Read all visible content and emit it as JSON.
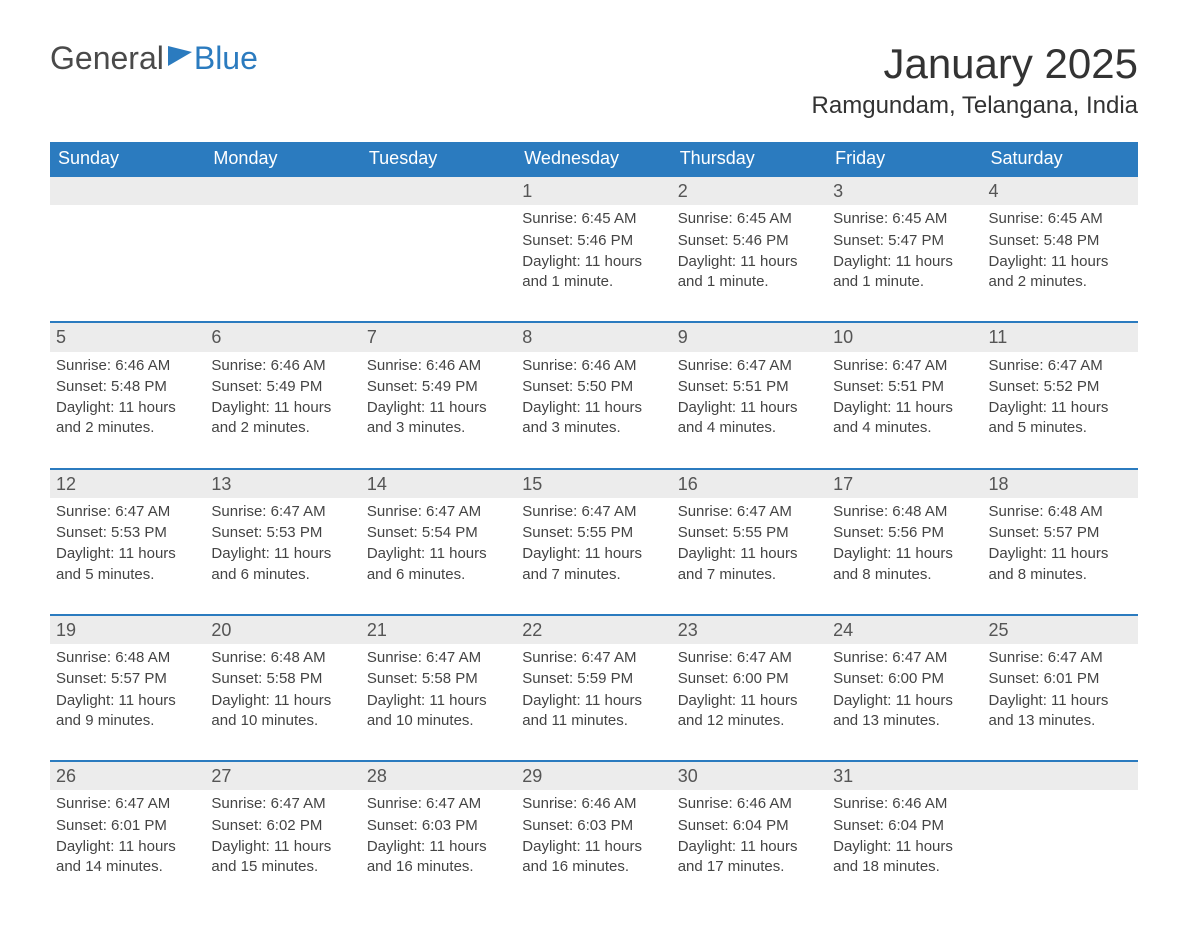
{
  "logo": {
    "part1": "General",
    "part2": "Blue"
  },
  "title": "January 2025",
  "location": "Ramgundam, Telangana, India",
  "colors": {
    "header_bg": "#2b7bbf",
    "header_text": "#ffffff",
    "daynum_bg": "#ececec",
    "body_text": "#444444",
    "row_rule": "#2b7bbf",
    "page_bg": "#ffffff"
  },
  "typography": {
    "title_fontsize": 42,
    "location_fontsize": 24,
    "header_fontsize": 18,
    "cell_fontsize": 15
  },
  "layout": {
    "start_weekday": "Sunday",
    "first_day_column_index": 3
  },
  "weekdays": [
    "Sunday",
    "Monday",
    "Tuesday",
    "Wednesday",
    "Thursday",
    "Friday",
    "Saturday"
  ],
  "labels": {
    "sunrise_prefix": "Sunrise: ",
    "sunset_prefix": "Sunset: ",
    "daylight_prefix": "Daylight: "
  },
  "days": [
    {
      "n": 1,
      "sunrise": "6:45 AM",
      "sunset": "5:46 PM",
      "daylight": "11 hours and 1 minute."
    },
    {
      "n": 2,
      "sunrise": "6:45 AM",
      "sunset": "5:46 PM",
      "daylight": "11 hours and 1 minute."
    },
    {
      "n": 3,
      "sunrise": "6:45 AM",
      "sunset": "5:47 PM",
      "daylight": "11 hours and 1 minute."
    },
    {
      "n": 4,
      "sunrise": "6:45 AM",
      "sunset": "5:48 PM",
      "daylight": "11 hours and 2 minutes."
    },
    {
      "n": 5,
      "sunrise": "6:46 AM",
      "sunset": "5:48 PM",
      "daylight": "11 hours and 2 minutes."
    },
    {
      "n": 6,
      "sunrise": "6:46 AM",
      "sunset": "5:49 PM",
      "daylight": "11 hours and 2 minutes."
    },
    {
      "n": 7,
      "sunrise": "6:46 AM",
      "sunset": "5:49 PM",
      "daylight": "11 hours and 3 minutes."
    },
    {
      "n": 8,
      "sunrise": "6:46 AM",
      "sunset": "5:50 PM",
      "daylight": "11 hours and 3 minutes."
    },
    {
      "n": 9,
      "sunrise": "6:47 AM",
      "sunset": "5:51 PM",
      "daylight": "11 hours and 4 minutes."
    },
    {
      "n": 10,
      "sunrise": "6:47 AM",
      "sunset": "5:51 PM",
      "daylight": "11 hours and 4 minutes."
    },
    {
      "n": 11,
      "sunrise": "6:47 AM",
      "sunset": "5:52 PM",
      "daylight": "11 hours and 5 minutes."
    },
    {
      "n": 12,
      "sunrise": "6:47 AM",
      "sunset": "5:53 PM",
      "daylight": "11 hours and 5 minutes."
    },
    {
      "n": 13,
      "sunrise": "6:47 AM",
      "sunset": "5:53 PM",
      "daylight": "11 hours and 6 minutes."
    },
    {
      "n": 14,
      "sunrise": "6:47 AM",
      "sunset": "5:54 PM",
      "daylight": "11 hours and 6 minutes."
    },
    {
      "n": 15,
      "sunrise": "6:47 AM",
      "sunset": "5:55 PM",
      "daylight": "11 hours and 7 minutes."
    },
    {
      "n": 16,
      "sunrise": "6:47 AM",
      "sunset": "5:55 PM",
      "daylight": "11 hours and 7 minutes."
    },
    {
      "n": 17,
      "sunrise": "6:48 AM",
      "sunset": "5:56 PM",
      "daylight": "11 hours and 8 minutes."
    },
    {
      "n": 18,
      "sunrise": "6:48 AM",
      "sunset": "5:57 PM",
      "daylight": "11 hours and 8 minutes."
    },
    {
      "n": 19,
      "sunrise": "6:48 AM",
      "sunset": "5:57 PM",
      "daylight": "11 hours and 9 minutes."
    },
    {
      "n": 20,
      "sunrise": "6:48 AM",
      "sunset": "5:58 PM",
      "daylight": "11 hours and 10 minutes."
    },
    {
      "n": 21,
      "sunrise": "6:47 AM",
      "sunset": "5:58 PM",
      "daylight": "11 hours and 10 minutes."
    },
    {
      "n": 22,
      "sunrise": "6:47 AM",
      "sunset": "5:59 PM",
      "daylight": "11 hours and 11 minutes."
    },
    {
      "n": 23,
      "sunrise": "6:47 AM",
      "sunset": "6:00 PM",
      "daylight": "11 hours and 12 minutes."
    },
    {
      "n": 24,
      "sunrise": "6:47 AM",
      "sunset": "6:00 PM",
      "daylight": "11 hours and 13 minutes."
    },
    {
      "n": 25,
      "sunrise": "6:47 AM",
      "sunset": "6:01 PM",
      "daylight": "11 hours and 13 minutes."
    },
    {
      "n": 26,
      "sunrise": "6:47 AM",
      "sunset": "6:01 PM",
      "daylight": "11 hours and 14 minutes."
    },
    {
      "n": 27,
      "sunrise": "6:47 AM",
      "sunset": "6:02 PM",
      "daylight": "11 hours and 15 minutes."
    },
    {
      "n": 28,
      "sunrise": "6:47 AM",
      "sunset": "6:03 PM",
      "daylight": "11 hours and 16 minutes."
    },
    {
      "n": 29,
      "sunrise": "6:46 AM",
      "sunset": "6:03 PM",
      "daylight": "11 hours and 16 minutes."
    },
    {
      "n": 30,
      "sunrise": "6:46 AM",
      "sunset": "6:04 PM",
      "daylight": "11 hours and 17 minutes."
    },
    {
      "n": 31,
      "sunrise": "6:46 AM",
      "sunset": "6:04 PM",
      "daylight": "11 hours and 18 minutes."
    }
  ]
}
